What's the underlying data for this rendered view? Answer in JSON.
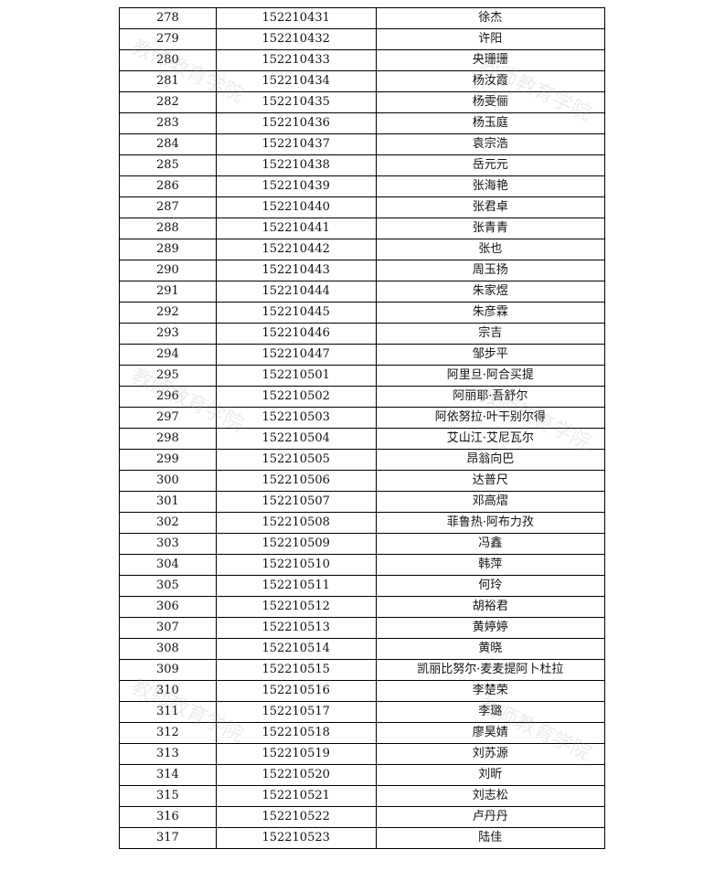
{
  "watermark": "教师教育学院",
  "rows": [
    [
      "278",
      "152210431",
      "徐杰"
    ],
    [
      "279",
      "152210432",
      "许阳"
    ],
    [
      "280",
      "152210433",
      "央珊珊"
    ],
    [
      "281",
      "152210434",
      "杨汝霞"
    ],
    [
      "282",
      "152210435",
      "杨雯俪"
    ],
    [
      "283",
      "152210436",
      "杨玉庭"
    ],
    [
      "284",
      "152210437",
      "袁宗浩"
    ],
    [
      "285",
      "152210438",
      "岳元元"
    ],
    [
      "286",
      "152210439",
      "张海艳"
    ],
    [
      "287",
      "152210440",
      "张君卓"
    ],
    [
      "288",
      "152210441",
      "张青青"
    ],
    [
      "289",
      "152210442",
      "张也"
    ],
    [
      "290",
      "152210443",
      "周玉扬"
    ],
    [
      "291",
      "152210444",
      "朱家煜"
    ],
    [
      "292",
      "152210445",
      "朱彦霖"
    ],
    [
      "293",
      "152210446",
      "宗吉"
    ],
    [
      "294",
      "152210447",
      "邹步平"
    ],
    [
      "295",
      "152210501",
      "阿里旦·阿合买提"
    ],
    [
      "296",
      "152210502",
      "阿丽耶·吾舒尔"
    ],
    [
      "297",
      "152210503",
      "阿依努拉·叶干别尔得"
    ],
    [
      "298",
      "152210504",
      "艾山江·艾尼瓦尔"
    ],
    [
      "299",
      "152210505",
      "昂翁向巴"
    ],
    [
      "300",
      "152210506",
      "达普尺"
    ],
    [
      "301",
      "152210507",
      "邓高熠"
    ],
    [
      "302",
      "152210508",
      "菲鲁热·阿布力孜"
    ],
    [
      "303",
      "152210509",
      "冯鑫"
    ],
    [
      "304",
      "152210510",
      "韩萍"
    ],
    [
      "305",
      "152210511",
      "何玲"
    ],
    [
      "306",
      "152210512",
      "胡裕君"
    ],
    [
      "307",
      "152210513",
      "黄婷婷"
    ],
    [
      "308",
      "152210514",
      "黄晓"
    ],
    [
      "309",
      "152210515",
      "凯丽比努尔·麦麦提阿卜杜拉"
    ],
    [
      "310",
      "152210516",
      "李楚荣"
    ],
    [
      "311",
      "152210517",
      "李璐"
    ],
    [
      "312",
      "152210518",
      "廖昊婧"
    ],
    [
      "313",
      "152210519",
      "刘苏源"
    ],
    [
      "314",
      "152210520",
      "刘昕"
    ],
    [
      "315",
      "152210521",
      "刘志松"
    ],
    [
      "316",
      "152210522",
      "卢丹丹"
    ],
    [
      "317",
      "152210523",
      "陆佳"
    ]
  ]
}
